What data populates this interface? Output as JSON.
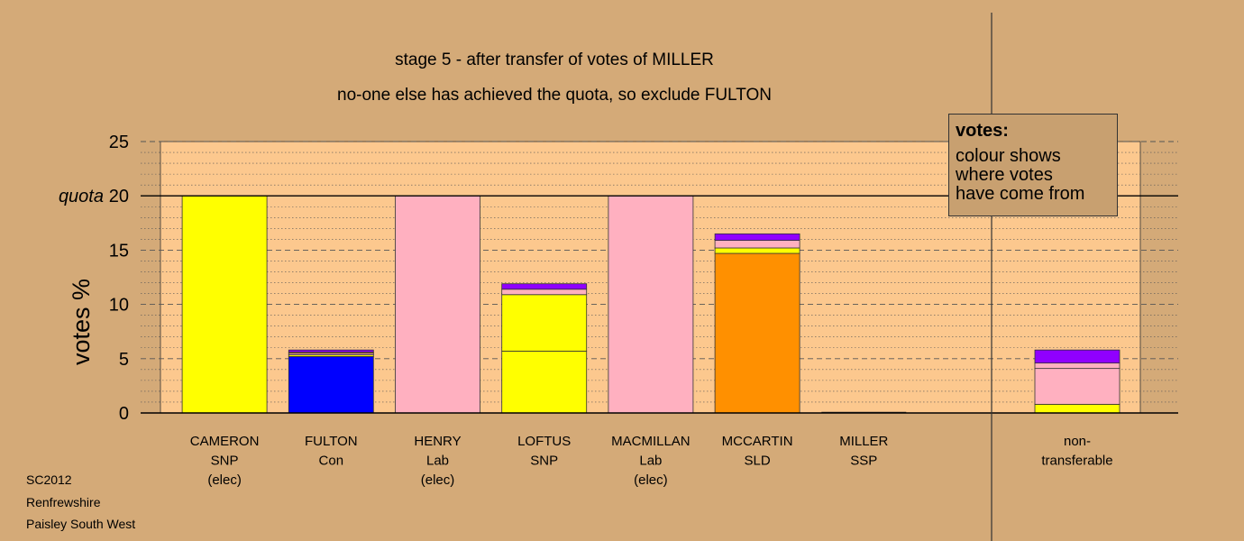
{
  "titles": {
    "line1": "stage 5 - after transfer of votes of MILLER",
    "line2": "no-one else has achieved the quota, so exclude FULTON"
  },
  "legend": {
    "title": "votes:",
    "lines": [
      "colour shows",
      "where votes",
      "have come from"
    ]
  },
  "footer": [
    "SC2012",
    "Renfrewshire",
    "Paisley South West"
  ],
  "colors": {
    "background": "#d4aa78",
    "plot": "#fcc88e",
    "SNP": "#ffff00",
    "Con": "#0000ff",
    "Lab": "#ffb0c0",
    "SLD": "#ff9000",
    "SSP": "#9000ff"
  },
  "chart_data": {
    "type": "bar",
    "stacked": true,
    "ylabel": "votes %",
    "ylim": [
      0,
      25
    ],
    "yticks": [
      0,
      5,
      10,
      15,
      20,
      25
    ],
    "quota": 20,
    "quota_label": "quota",
    "grid": "dashed every 5, dotted every 1",
    "legend_placement": "top-right",
    "categories": [
      {
        "lines": [
          "CAMERON",
          "SNP",
          "(elec)"
        ],
        "segments": [
          {
            "color": "#ffff00",
            "value": 20
          }
        ]
      },
      {
        "lines": [
          "FULTON",
          "Con"
        ],
        "segments": [
          {
            "color": "#0000ff",
            "value": 5.2
          },
          {
            "color": "#ffff00",
            "value": 0.15
          },
          {
            "color": "#ffb0c0",
            "value": 0.15
          },
          {
            "color": "#ff9000",
            "value": 0.1
          },
          {
            "color": "#9000ff",
            "value": 0.2
          }
        ]
      },
      {
        "lines": [
          "HENRY",
          "Lab",
          "(elec)"
        ],
        "segments": [
          {
            "color": "#ffb0c0",
            "value": 20
          }
        ]
      },
      {
        "lines": [
          "LOFTUS",
          "SNP"
        ],
        "segments": [
          {
            "color": "#ffff00",
            "value": 5.7
          },
          {
            "color": "#ffff00",
            "value": 5.2
          },
          {
            "color": "#ffb0c0",
            "value": 0.5
          },
          {
            "color": "#9000ff",
            "value": 0.5
          }
        ]
      },
      {
        "lines": [
          "MACMILLAN",
          "Lab",
          "(elec)"
        ],
        "segments": [
          {
            "color": "#ffb0c0",
            "value": 20
          }
        ]
      },
      {
        "lines": [
          "MCCARTIN",
          "SLD"
        ],
        "segments": [
          {
            "color": "#ff9000",
            "value": 14.7
          },
          {
            "color": "#ffff00",
            "value": 0.5
          },
          {
            "color": "#ffb0c0",
            "value": 0.7
          },
          {
            "color": "#9000ff",
            "value": 0.6
          }
        ]
      },
      {
        "lines": [
          "MILLER",
          "SSP"
        ],
        "segments": []
      },
      {
        "lines": [
          "non-",
          "transferable"
        ],
        "separate": true,
        "segments": [
          {
            "color": "#ffff00",
            "value": 0.8
          },
          {
            "color": "#ffb0c0",
            "value": 3.3
          },
          {
            "color": "#ffb0c0",
            "value": 0.5
          },
          {
            "color": "#9000ff",
            "value": 1.2
          }
        ]
      }
    ]
  }
}
